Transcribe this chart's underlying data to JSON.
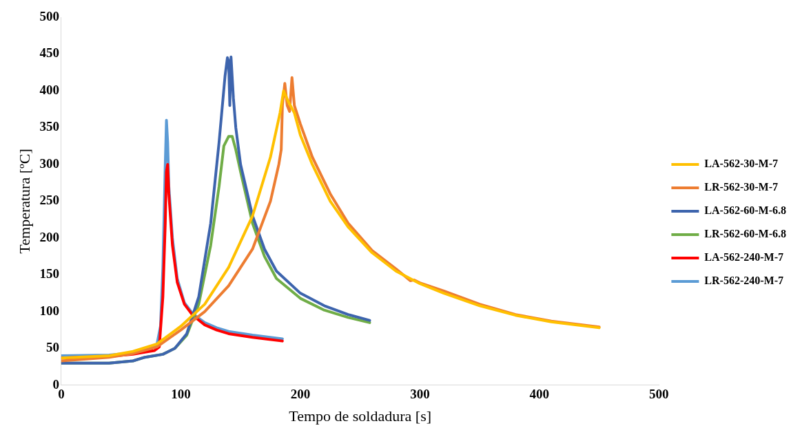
{
  "chart_data": {
    "type": "line",
    "xlabel": "Tempo de soldadura [s]",
    "ylabel": "Temperatura [ºC]",
    "xlim": [
      0,
      500
    ],
    "xticks": [
      0,
      100,
      200,
      300,
      400,
      500
    ],
    "ylim": [
      0,
      500
    ],
    "yticks": [
      0,
      50,
      100,
      150,
      200,
      250,
      300,
      350,
      400,
      450,
      500
    ],
    "grid": false,
    "legend": "right",
    "marker": "none",
    "line_style": "solid",
    "series": [
      {
        "name": "LA-562-30-M-7",
        "color": "#ffc000",
        "x": [
          0,
          40,
          60,
          80,
          100,
          120,
          140,
          160,
          175,
          183,
          186,
          190,
          195,
          200,
          210,
          225,
          240,
          260,
          280,
          300,
          320,
          350,
          380,
          410,
          450
        ],
        "values": [
          37,
          40,
          46,
          56,
          80,
          110,
          160,
          230,
          310,
          370,
          400,
          385,
          370,
          340,
          300,
          250,
          215,
          180,
          155,
          138,
          125,
          108,
          95,
          86,
          78
        ]
      },
      {
        "name": "LR-562-30-M-7",
        "color": "#ed7d31",
        "x": [
          0,
          40,
          60,
          80,
          100,
          120,
          140,
          160,
          175,
          182,
          184,
          185,
          187,
          189,
          191,
          193,
          195,
          200,
          210,
          225,
          240,
          260,
          280,
          292,
          295,
          300,
          320,
          350,
          380,
          410,
          450
        ],
        "values": [
          33,
          38,
          43,
          52,
          75,
          100,
          135,
          185,
          250,
          300,
          320,
          380,
          410,
          380,
          372,
          418,
          380,
          355,
          310,
          260,
          220,
          183,
          158,
          142,
          143,
          139,
          128,
          110,
          96,
          87,
          79
        ]
      },
      {
        "name": "LA-562-60-M-6.8",
        "color": "#3d64ad",
        "x": [
          0,
          40,
          60,
          70,
          85,
          95,
          105,
          115,
          125,
          132,
          137,
          139,
          140,
          141,
          142,
          144,
          146,
          150,
          160,
          170,
          180,
          200,
          220,
          240,
          258
        ],
        "values": [
          30,
          30,
          33,
          38,
          42,
          50,
          70,
          120,
          220,
          330,
          420,
          445,
          440,
          380,
          446,
          390,
          350,
          300,
          230,
          185,
          155,
          125,
          108,
          96,
          88
        ]
      },
      {
        "name": "LR-562-60-M-6.8",
        "color": "#70ad47",
        "x": [
          0,
          40,
          60,
          70,
          85,
          95,
          105,
          115,
          125,
          132,
          136,
          140,
          143,
          146,
          150,
          160,
          170,
          180,
          200,
          220,
          240,
          258
        ],
        "values": [
          30,
          30,
          33,
          38,
          42,
          50,
          68,
          110,
          190,
          270,
          325,
          338,
          338,
          320,
          290,
          220,
          175,
          145,
          118,
          102,
          92,
          85
        ]
      },
      {
        "name": "LA-562-240-M-7",
        "color": "#ff0000",
        "x": [
          0,
          40,
          60,
          70,
          78,
          82,
          85,
          87,
          88,
          89,
          90,
          93,
          97,
          103,
          110,
          120,
          130,
          140,
          160,
          185
        ],
        "values": [
          37,
          39,
          42,
          45,
          47,
          52,
          120,
          220,
          290,
          300,
          260,
          190,
          140,
          110,
          95,
          82,
          75,
          70,
          65,
          60
        ]
      },
      {
        "name": "LR-562-240-M-7",
        "color": "#5b9bd5",
        "x": [
          0,
          40,
          60,
          75,
          80,
          83,
          85,
          87,
          88,
          89,
          90,
          93,
          97,
          103,
          110,
          120,
          130,
          140,
          160,
          185
        ],
        "values": [
          40,
          41,
          44,
          50,
          55,
          80,
          160,
          300,
          360,
          330,
          270,
          200,
          145,
          112,
          97,
          85,
          78,
          73,
          68,
          63
        ]
      }
    ]
  }
}
